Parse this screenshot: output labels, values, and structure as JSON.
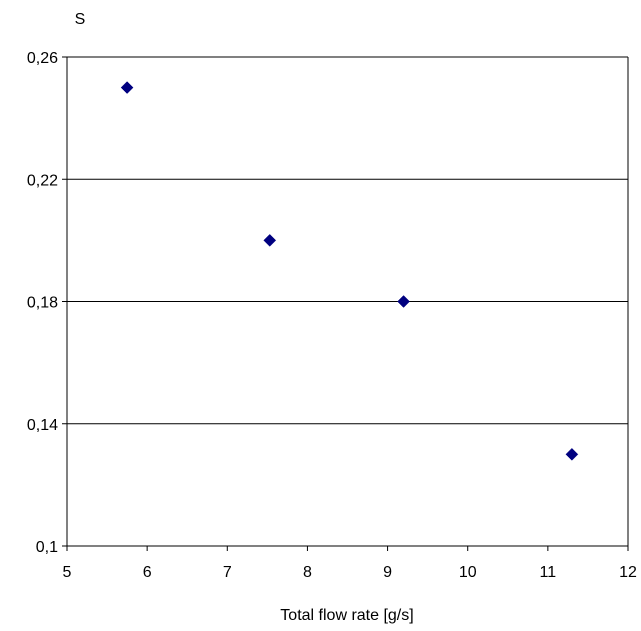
{
  "chart_data": {
    "type": "scatter",
    "ylabel": "S",
    "xlabel": "Total flow  rate [g/s]",
    "xlim": [
      5,
      12
    ],
    "ylim": [
      0.1,
      0.26
    ],
    "x_ticks": [
      5,
      6,
      7,
      8,
      9,
      10,
      11,
      12
    ],
    "x_tick_labels": [
      "5",
      "6",
      "7",
      "8",
      "9",
      "10",
      "11",
      "12"
    ],
    "y_ticks": [
      0.1,
      0.14,
      0.18,
      0.22,
      0.26
    ],
    "y_tick_labels": [
      "0,1",
      "0,14",
      "0,18",
      "0,22",
      "0,26"
    ],
    "grid": "horizontal",
    "legend": "none",
    "marker": "diamond",
    "series": [
      {
        "color": "#000080",
        "points": [
          {
            "x": 5.75,
            "y": 0.25
          },
          {
            "x": 7.53,
            "y": 0.2
          },
          {
            "x": 9.2,
            "y": 0.18
          },
          {
            "x": 11.3,
            "y": 0.13
          }
        ]
      }
    ]
  }
}
